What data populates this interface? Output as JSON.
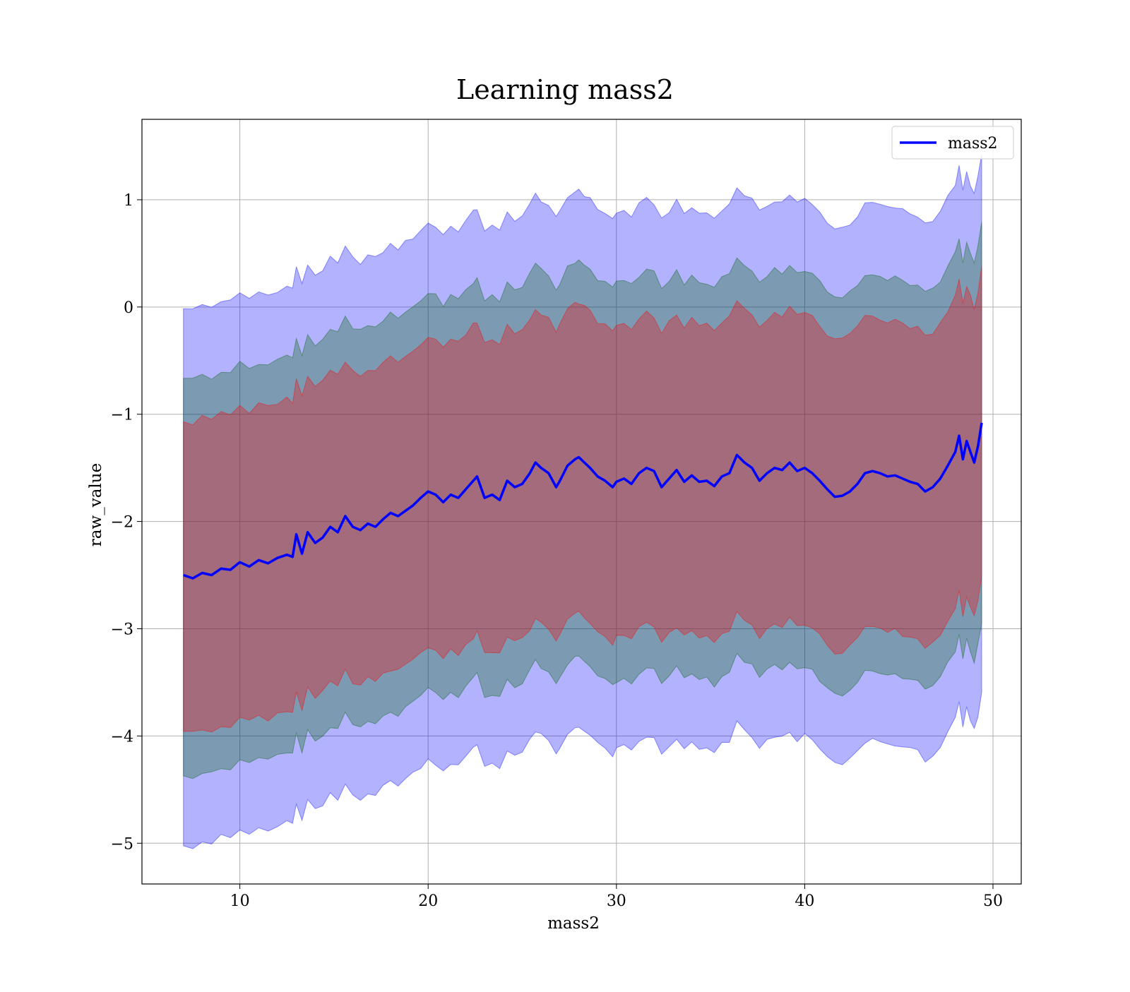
{
  "chart_data": {
    "type": "line",
    "title": "Learning mass2",
    "xlabel": "mass2",
    "ylabel": "raw_value",
    "xlim": [
      4.8,
      51.5
    ],
    "ylim": [
      -5.38,
      1.75
    ],
    "xticks": [
      10,
      20,
      30,
      40,
      50
    ],
    "yticks": [
      -5,
      -4,
      -3,
      -2,
      -1,
      0,
      1
    ],
    "xtick_labels": [
      "10",
      "20",
      "30",
      "40",
      "50"
    ],
    "ytick_labels": [
      "−5",
      "−4",
      "−3",
      "−2",
      "−1",
      "0",
      "1"
    ],
    "grid": true,
    "legend": {
      "position": "top-right",
      "entries": [
        "mass2"
      ]
    },
    "colors": {
      "line": "#0000ff",
      "band_outer": "#0000ff",
      "band_middle": "#006400",
      "band_inner": "#ff0000"
    },
    "bands": [
      {
        "level": "outer",
        "offset": 2.5
      },
      {
        "level": "middle",
        "offset": 1.85
      },
      {
        "level": "inner",
        "offset": 1.45
      }
    ],
    "series": [
      {
        "name": "mass2",
        "x": [
          7.0,
          7.5,
          8.0,
          8.5,
          9.0,
          9.5,
          10.0,
          10.5,
          11.0,
          11.5,
          12.0,
          12.5,
          12.8,
          13.0,
          13.3,
          13.6,
          14.0,
          14.4,
          14.8,
          15.2,
          15.6,
          16.0,
          16.4,
          16.8,
          17.2,
          17.6,
          18.0,
          18.4,
          18.8,
          19.2,
          19.6,
          20.0,
          20.4,
          20.8,
          21.2,
          21.6,
          22.0,
          22.4,
          22.6,
          23.0,
          23.4,
          23.8,
          24.2,
          24.6,
          25.0,
          25.4,
          25.7,
          26.0,
          26.4,
          26.8,
          27.0,
          27.4,
          27.8,
          28.0,
          28.3,
          28.6,
          29.0,
          29.4,
          29.8,
          30.0,
          30.4,
          30.8,
          31.2,
          31.6,
          32.0,
          32.4,
          32.8,
          33.2,
          33.6,
          34.0,
          34.4,
          34.8,
          35.2,
          35.6,
          36.0,
          36.4,
          36.8,
          37.2,
          37.6,
          38.0,
          38.4,
          38.8,
          39.2,
          39.6,
          40.0,
          40.4,
          40.8,
          41.2,
          41.6,
          42.0,
          42.4,
          42.8,
          43.2,
          43.6,
          44.0,
          44.4,
          44.8,
          45.2,
          45.6,
          46.0,
          46.4,
          46.8,
          47.2,
          47.6,
          48.0,
          48.2,
          48.4,
          48.6,
          48.8,
          49.0,
          49.2,
          49.4
        ],
        "y": [
          -2.5,
          -2.53,
          -2.48,
          -2.5,
          -2.44,
          -2.45,
          -2.38,
          -2.42,
          -2.36,
          -2.39,
          -2.34,
          -2.31,
          -2.33,
          -2.12,
          -2.3,
          -2.1,
          -2.2,
          -2.15,
          -2.05,
          -2.1,
          -1.95,
          -2.05,
          -2.08,
          -2.02,
          -2.05,
          -1.98,
          -1.92,
          -1.95,
          -1.9,
          -1.85,
          -1.78,
          -1.72,
          -1.75,
          -1.82,
          -1.75,
          -1.78,
          -1.7,
          -1.62,
          -1.58,
          -1.78,
          -1.75,
          -1.8,
          -1.62,
          -1.68,
          -1.65,
          -1.55,
          -1.45,
          -1.5,
          -1.55,
          -1.68,
          -1.62,
          -1.48,
          -1.42,
          -1.4,
          -1.45,
          -1.5,
          -1.58,
          -1.62,
          -1.68,
          -1.63,
          -1.6,
          -1.65,
          -1.55,
          -1.5,
          -1.53,
          -1.68,
          -1.6,
          -1.52,
          -1.63,
          -1.57,
          -1.63,
          -1.62,
          -1.67,
          -1.58,
          -1.55,
          -1.38,
          -1.45,
          -1.5,
          -1.62,
          -1.55,
          -1.5,
          -1.52,
          -1.45,
          -1.53,
          -1.5,
          -1.55,
          -1.62,
          -1.7,
          -1.77,
          -1.76,
          -1.72,
          -1.65,
          -1.55,
          -1.53,
          -1.55,
          -1.58,
          -1.57,
          -1.6,
          -1.63,
          -1.65,
          -1.72,
          -1.68,
          -1.6,
          -1.48,
          -1.35,
          -1.2,
          -1.42,
          -1.25,
          -1.35,
          -1.45,
          -1.3,
          -1.08
        ]
      }
    ]
  }
}
